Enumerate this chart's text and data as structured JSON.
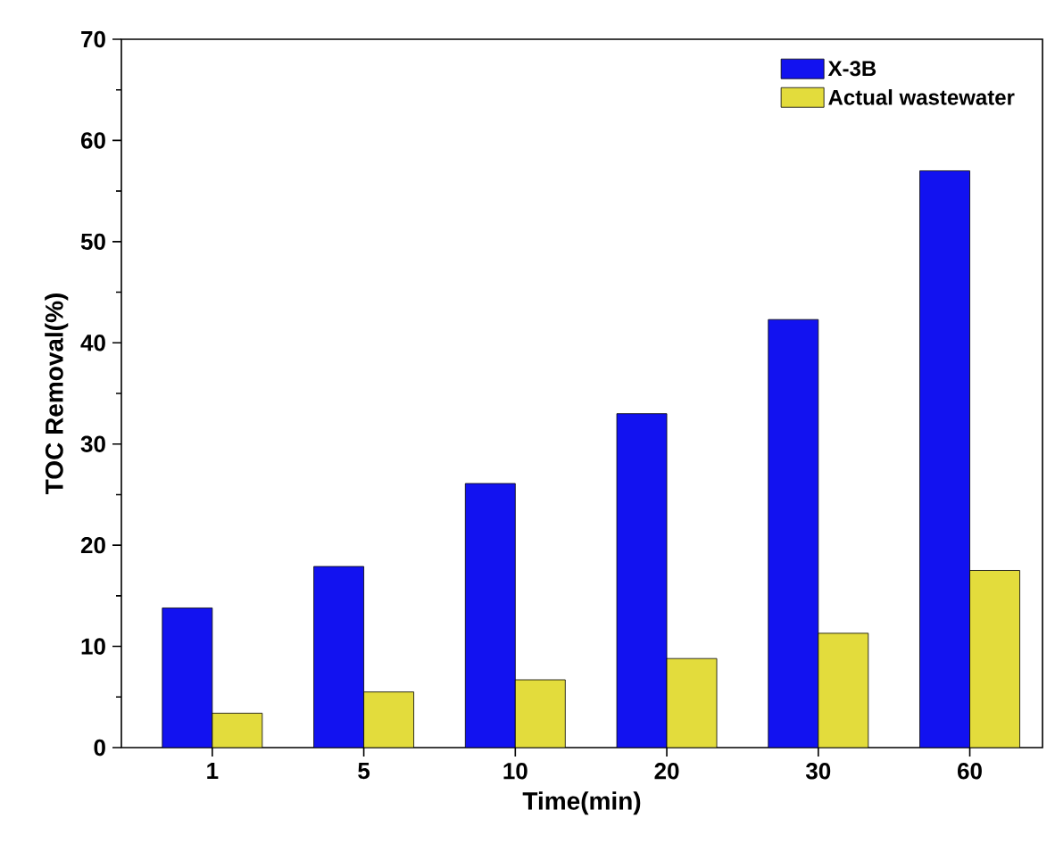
{
  "chart_data": {
    "type": "bar",
    "xlabel": "Time(min)",
    "ylabel": "TOC Removal(%)",
    "categories": [
      "1",
      "5",
      "10",
      "20",
      "30",
      "60"
    ],
    "series": [
      {
        "name": "X-3B",
        "color": "#1212f0",
        "values": [
          13.8,
          17.9,
          26.1,
          33.0,
          42.3,
          57.0
        ]
      },
      {
        "name": "Actual wastewater",
        "color": "#e3dc3c",
        "values": [
          3.4,
          5.5,
          6.7,
          8.8,
          11.3,
          17.5
        ]
      }
    ],
    "ylim": [
      0,
      70
    ],
    "yticks": [
      0,
      10,
      20,
      30,
      40,
      50,
      60,
      70
    ],
    "legend": "top right",
    "grid": false
  }
}
